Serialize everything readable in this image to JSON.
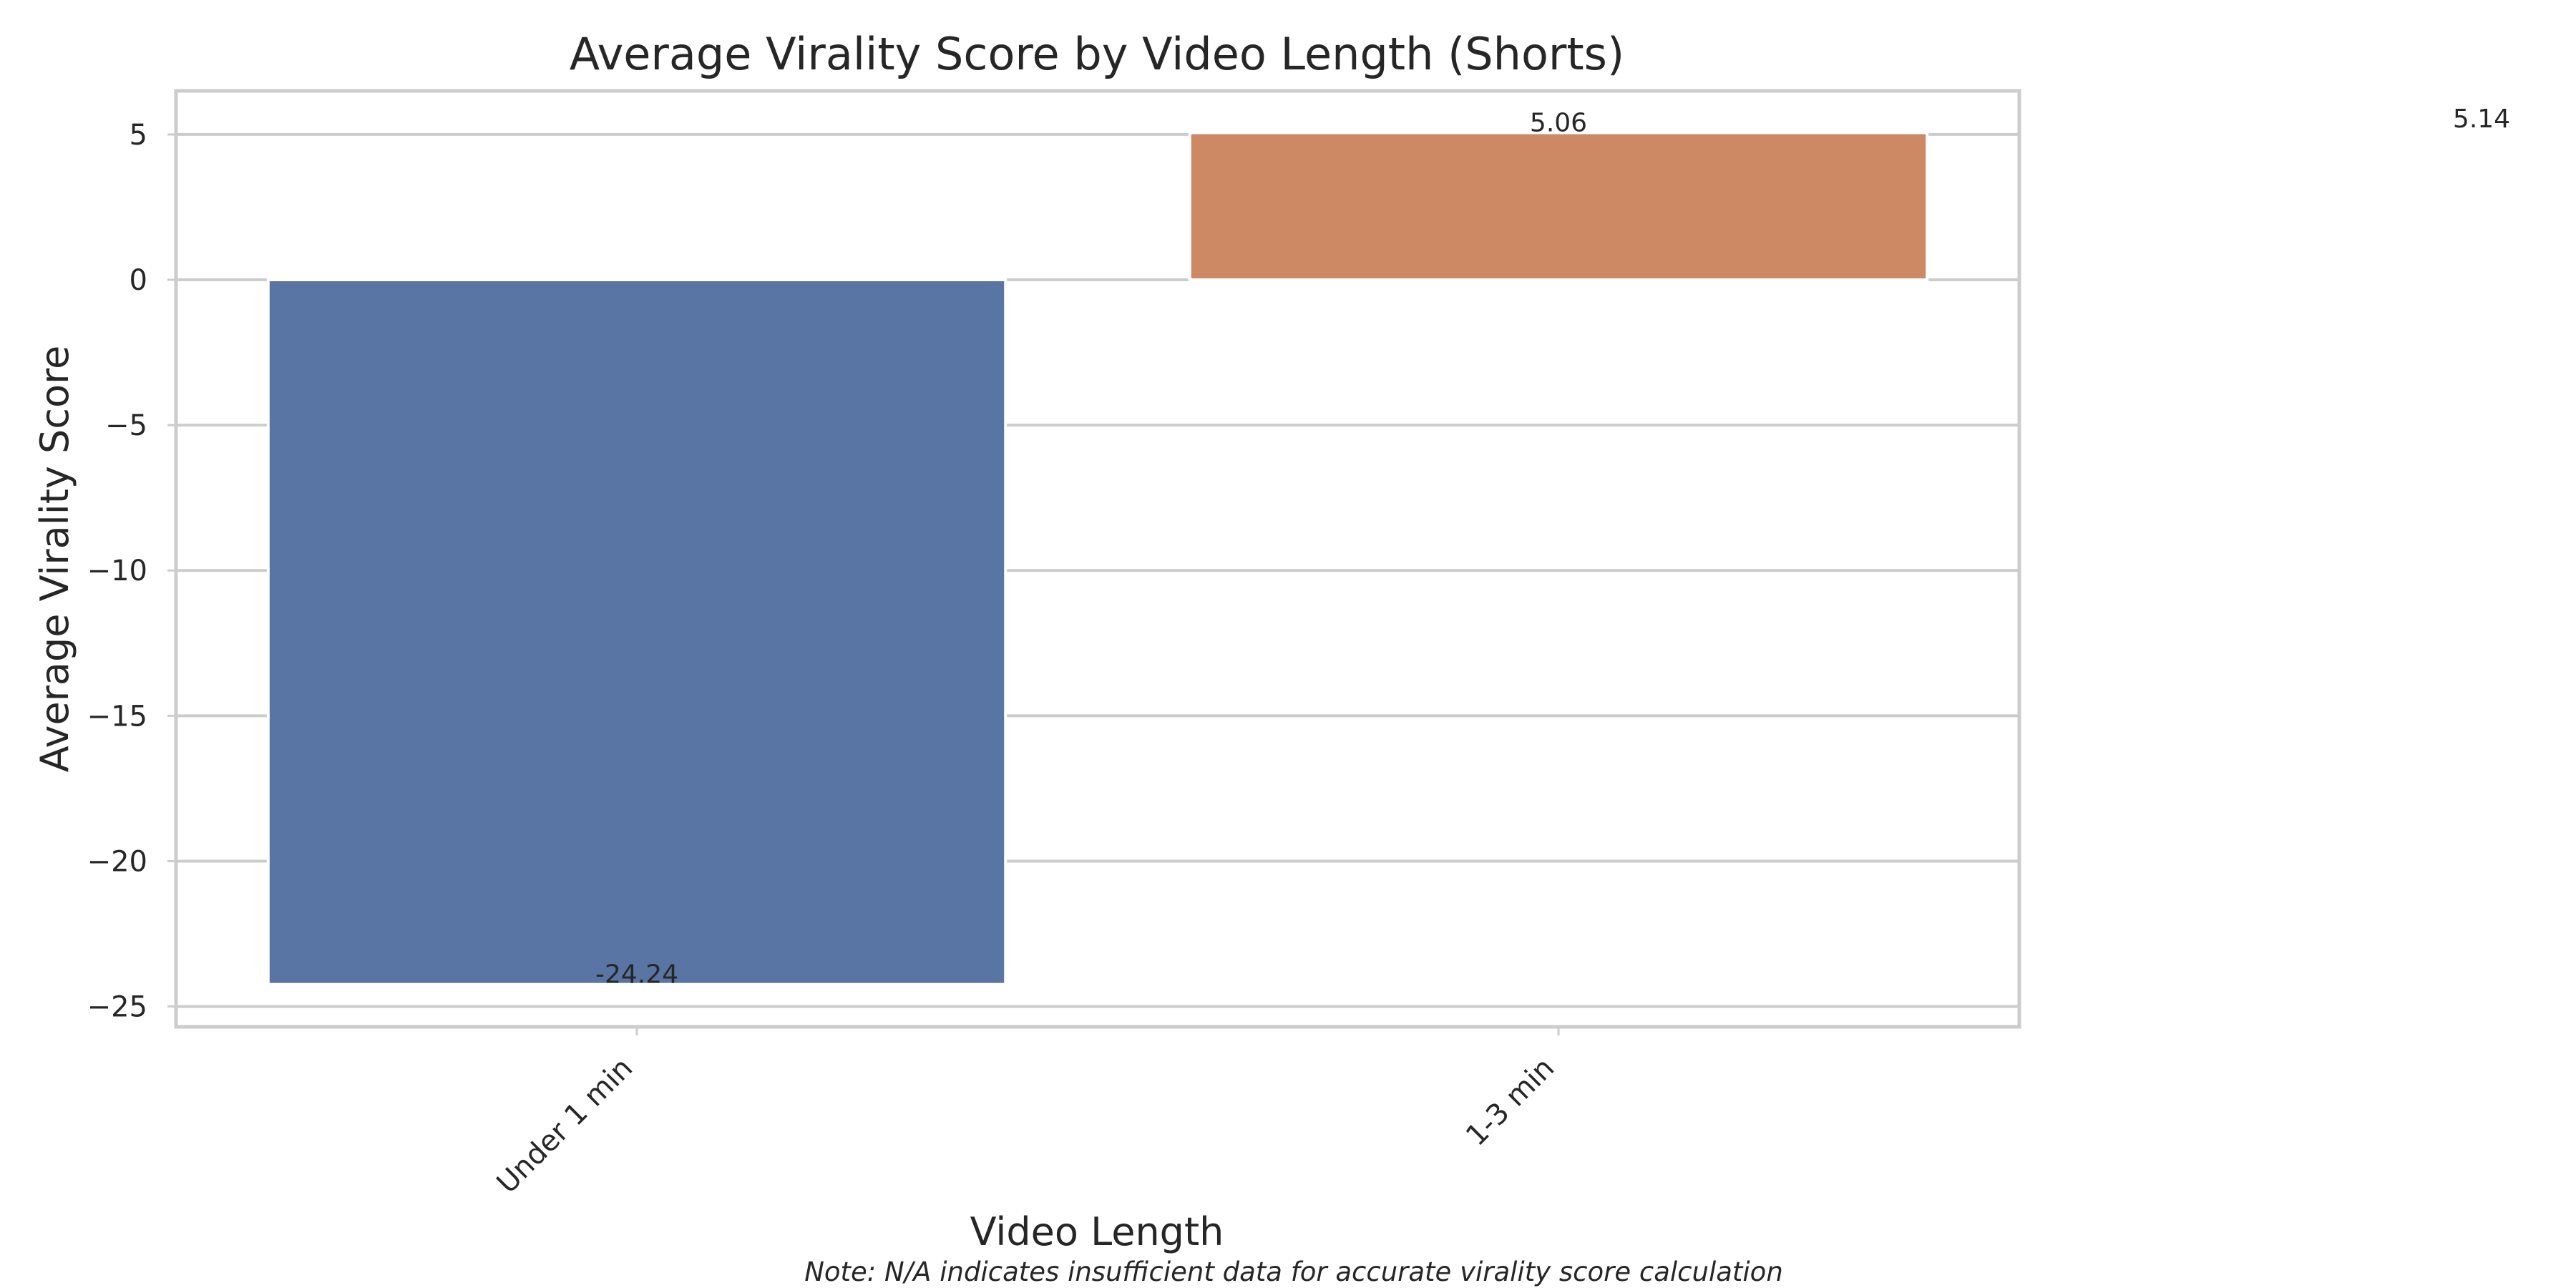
{
  "chart_data": {
    "type": "bar",
    "title": "Average Virality Score by Video Length (Shorts)",
    "xlabel": "Video Length",
    "ylabel": "Average Virality Score",
    "categories": [
      "Under 1 min",
      "1-3 min"
    ],
    "values": [
      -24.24,
      5.06
    ],
    "value_labels": [
      "-24.24",
      "5.06"
    ],
    "extra_label": "5.14",
    "ylim": [
      -25.7,
      6.5
    ],
    "yticks": [
      5,
      0,
      -5,
      -10,
      -15,
      -20,
      -25
    ],
    "ytick_labels": [
      "5",
      "0",
      "−5",
      "−10",
      "−15",
      "−20",
      "−25"
    ],
    "grid": true,
    "legend": "none",
    "colors": [
      "#5975a4",
      "#cc8963"
    ],
    "note": "Note: N/A indicates insufficient data for accurate virality score calculation"
  }
}
